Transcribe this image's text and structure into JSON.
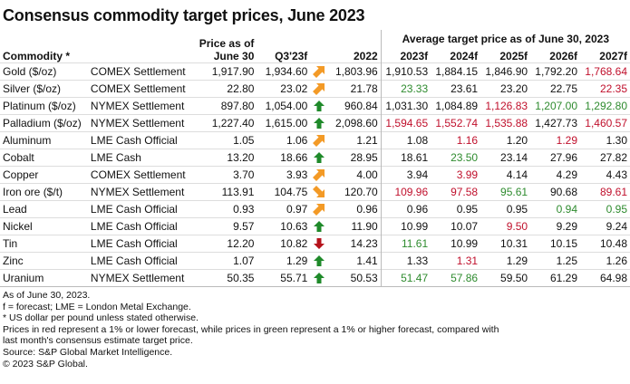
{
  "title": "Consensus commodity target prices, June 2023",
  "headers": {
    "commodity": "Commodity *",
    "price_line1": "Price as of",
    "price_line2": "June  30",
    "q3": "Q3'23f",
    "y2022": "2022",
    "group": "Average target price as of June  30, 2023",
    "years": [
      "2023f",
      "2024f",
      "2025f",
      "2026f",
      "2027f"
    ]
  },
  "colors": {
    "red": "#c0102c",
    "green": "#2e8b2e",
    "arrow_orange": "#f39a26",
    "arrow_green": "#1f8a2a",
    "arrow_red": "#b5121b"
  },
  "rows": [
    {
      "name": "Gold ($/oz)",
      "source": "COMEX Settlement",
      "price": "1,917.90",
      "q3": "1,934.60",
      "arrow": "up-right",
      "y2022": "1,803.96",
      "f": [
        [
          "1,910.53",
          ""
        ],
        [
          "1,884.15",
          ""
        ],
        [
          "1,846.90",
          ""
        ],
        [
          "1,792.20",
          ""
        ],
        [
          "1,768.64",
          "r"
        ]
      ]
    },
    {
      "name": "Silver ($/oz)",
      "source": "COMEX Settlement",
      "price": "22.80",
      "q3": "23.02",
      "arrow": "up-right",
      "y2022": "21.78",
      "f": [
        [
          "23.33",
          "g"
        ],
        [
          "23.61",
          ""
        ],
        [
          "23.20",
          ""
        ],
        [
          "22.75",
          ""
        ],
        [
          "22.35",
          "r"
        ]
      ]
    },
    {
      "name": "Platinum ($/oz)",
      "source": "NYMEX Settlement",
      "price": "897.80",
      "q3": "1,054.00",
      "arrow": "up",
      "y2022": "960.84",
      "f": [
        [
          "1,031.30",
          ""
        ],
        [
          "1,084.89",
          ""
        ],
        [
          "1,126.83",
          "r"
        ],
        [
          "1,207.00",
          "g"
        ],
        [
          "1,292.80",
          "g"
        ]
      ]
    },
    {
      "name": "Palladium ($/oz)",
      "source": "NYMEX Settlement",
      "price": "1,227.40",
      "q3": "1,615.00",
      "arrow": "up",
      "y2022": "2,098.60",
      "f": [
        [
          "1,594.65",
          "r"
        ],
        [
          "1,552.74",
          "r"
        ],
        [
          "1,535.88",
          "r"
        ],
        [
          "1,427.73",
          ""
        ],
        [
          "1,460.57",
          "r"
        ]
      ]
    },
    {
      "name": "Aluminum",
      "source": "LME Cash Official",
      "price": "1.05",
      "q3": "1.06",
      "arrow": "up-right",
      "y2022": "1.21",
      "f": [
        [
          "1.08",
          ""
        ],
        [
          "1.16",
          "r"
        ],
        [
          "1.20",
          ""
        ],
        [
          "1.29",
          "r"
        ],
        [
          "1.30",
          ""
        ]
      ]
    },
    {
      "name": "Cobalt",
      "source": "LME Cash",
      "price": "13.20",
      "q3": "18.66",
      "arrow": "up",
      "y2022": "28.95",
      "f": [
        [
          "18.61",
          ""
        ],
        [
          "23.50",
          "g"
        ],
        [
          "23.14",
          ""
        ],
        [
          "27.96",
          ""
        ],
        [
          "27.82",
          ""
        ]
      ]
    },
    {
      "name": "Copper",
      "source": "COMEX Settlement",
      "price": "3.70",
      "q3": "3.93",
      "arrow": "up-right",
      "y2022": "4.00",
      "f": [
        [
          "3.94",
          ""
        ],
        [
          "3.99",
          "r"
        ],
        [
          "4.14",
          ""
        ],
        [
          "4.29",
          ""
        ],
        [
          "4.43",
          ""
        ]
      ]
    },
    {
      "name": "Iron ore ($/t)",
      "source": "NYMEX Settlement",
      "price": "113.91",
      "q3": "104.75",
      "arrow": "down-right",
      "y2022": "120.70",
      "f": [
        [
          "109.96",
          "r"
        ],
        [
          "97.58",
          "r"
        ],
        [
          "95.61",
          "g"
        ],
        [
          "90.68",
          ""
        ],
        [
          "89.61",
          "r"
        ]
      ]
    },
    {
      "name": "Lead",
      "source": "LME Cash Official",
      "price": "0.93",
      "q3": "0.97",
      "arrow": "up-right",
      "y2022": "0.96",
      "f": [
        [
          "0.96",
          ""
        ],
        [
          "0.95",
          ""
        ],
        [
          "0.95",
          ""
        ],
        [
          "0.94",
          "g"
        ],
        [
          "0.95",
          "g"
        ]
      ]
    },
    {
      "name": "Nickel",
      "source": "LME Cash Official",
      "price": "9.57",
      "q3": "10.63",
      "arrow": "up",
      "y2022": "11.90",
      "f": [
        [
          "10.99",
          ""
        ],
        [
          "10.07",
          ""
        ],
        [
          "9.50",
          "r"
        ],
        [
          "9.29",
          ""
        ],
        [
          "9.24",
          ""
        ]
      ]
    },
    {
      "name": "Tin",
      "source": "LME Cash Official",
      "price": "12.20",
      "q3": "10.82",
      "arrow": "down",
      "y2022": "14.23",
      "f": [
        [
          "11.61",
          "g"
        ],
        [
          "10.99",
          ""
        ],
        [
          "10.31",
          ""
        ],
        [
          "10.15",
          ""
        ],
        [
          "10.48",
          ""
        ]
      ]
    },
    {
      "name": "Zinc",
      "source": "LME Cash Official",
      "price": "1.07",
      "q3": "1.29",
      "arrow": "up",
      "y2022": "1.41",
      "f": [
        [
          "1.33",
          ""
        ],
        [
          "1.31",
          "r"
        ],
        [
          "1.29",
          ""
        ],
        [
          "1.25",
          ""
        ],
        [
          "1.26",
          ""
        ]
      ]
    },
    {
      "name": "Uranium",
      "source": "NYMEX Settlement",
      "price": "50.35",
      "q3": "55.71",
      "arrow": "up",
      "y2022": "50.53",
      "f": [
        [
          "51.47",
          "g"
        ],
        [
          "57.86",
          "g"
        ],
        [
          "59.50",
          ""
        ],
        [
          "61.29",
          ""
        ],
        [
          "64.98",
          ""
        ]
      ]
    }
  ],
  "notes": [
    "As of June 30, 2023.",
    "f = forecast; LME = London Metal Exchange.",
    "* US dollar per pound unless stated otherwise.",
    "Prices in red represent a 1% or lower forecast, while prices in green represent a 1% or higher forecast, compared with last month's consensus estimate target price.",
    "Source: S&P Global Market Intelligence.",
    "© 2023 S&P Global."
  ]
}
